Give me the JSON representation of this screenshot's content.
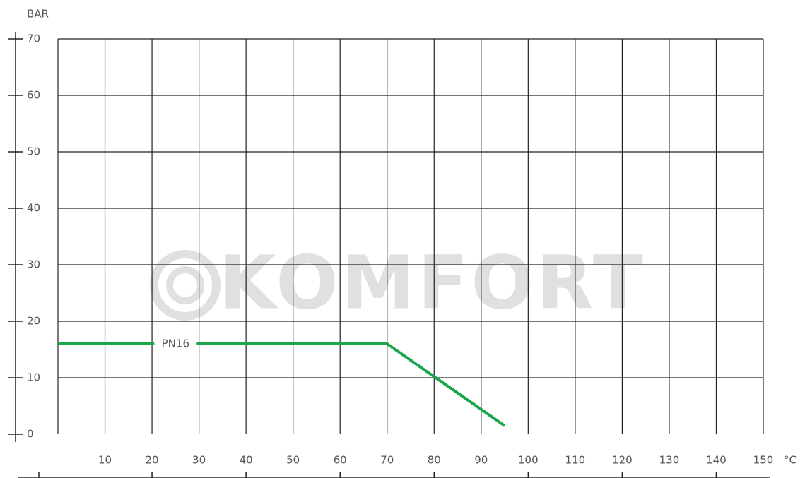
{
  "chart_data": {
    "type": "line",
    "y_label": "BAR",
    "x_label": "°C",
    "watermark": "KOMFORT",
    "x": [
      0,
      70,
      95
    ],
    "series": [
      {
        "name": "PN16",
        "color": "#1aa64a",
        "values": [
          16,
          16,
          1.5
        ]
      }
    ],
    "xlim": [
      0,
      150
    ],
    "xticks": [
      10,
      20,
      30,
      40,
      50,
      60,
      70,
      80,
      90,
      100,
      110,
      120,
      130,
      140,
      150
    ],
    "ylim": [
      0,
      70
    ],
    "yticks": [
      0,
      10,
      20,
      30,
      40,
      50,
      60,
      70
    ],
    "grid": true
  }
}
